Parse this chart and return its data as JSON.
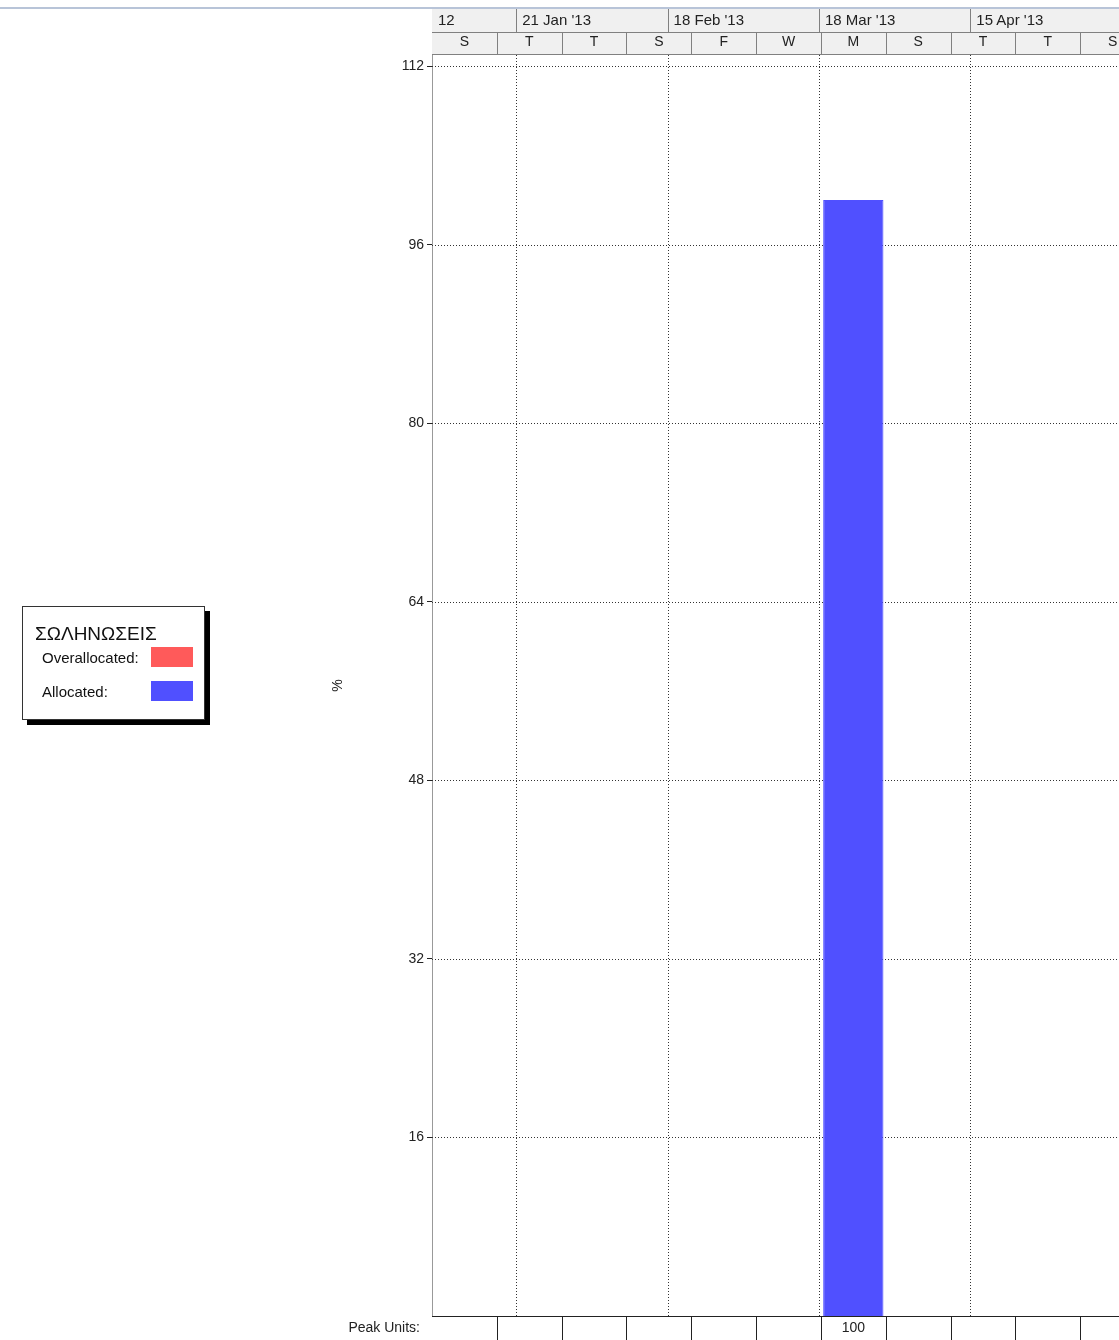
{
  "chart_data": {
    "type": "bar",
    "stacked": true,
    "categories": [
      "S",
      "T",
      "T",
      "S",
      "F",
      "W",
      "M",
      "S",
      "T",
      "T",
      "S"
    ],
    "series": [
      {
        "name": "Allocated:",
        "color": "#5050ff",
        "values": [
          0,
          0,
          0,
          0,
          0,
          0,
          100,
          0,
          0,
          0,
          0
        ],
        "value_labels": [
          null,
          null,
          null,
          null,
          null,
          null,
          "100",
          null,
          null,
          null,
          null
        ]
      },
      {
        "name": "Overallocated:",
        "color": "#ff5a5a",
        "values": [
          0,
          0,
          0,
          0,
          0,
          0,
          0,
          0,
          0,
          0,
          0
        ]
      }
    ],
    "ylabel": "%",
    "ylim": [
      0,
      113
    ],
    "yticks": [
      16,
      32,
      48,
      64,
      80,
      96,
      112
    ],
    "legend_title": "ΣΩΛΗΝΩΣΕΙΣ",
    "legend": "left",
    "grid": true,
    "annotations": [
      "Peak Units:",
      "12",
      "21 Jan '13",
      "18 Feb '13",
      "18 Mar '13",
      "15 Apr '13"
    ]
  }
}
